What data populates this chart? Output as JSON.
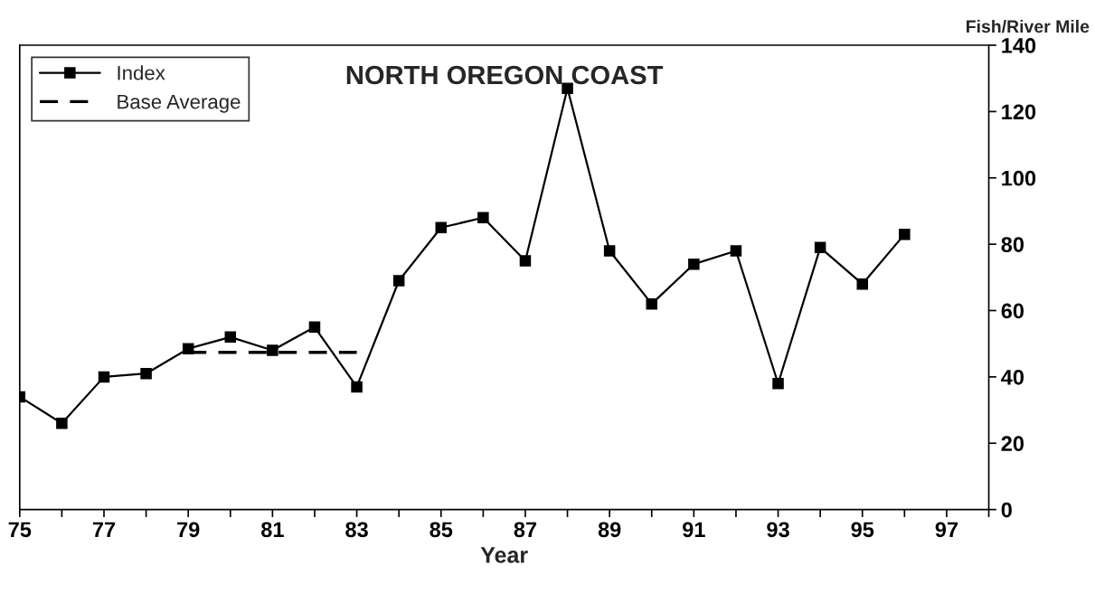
{
  "chart_data": {
    "type": "line",
    "title": "NORTH OREGON COAST",
    "xlabel": "Year",
    "ylabel": "Fish/River Mile",
    "xlim": [
      75,
      98
    ],
    "ylim": [
      0,
      140
    ],
    "xticks": [
      75,
      {
        "value": 76,
        "label": null
      },
      77,
      {
        "value": 78,
        "label": null
      },
      79,
      {
        "value": 80,
        "label": null
      },
      81,
      {
        "value": 82,
        "label": null
      },
      83,
      {
        "value": 84,
        "label": null
      },
      85,
      {
        "value": 86,
        "label": null
      },
      87,
      {
        "value": 88,
        "label": null
      },
      89,
      {
        "value": 90,
        "label": null
      },
      91,
      {
        "value": 92,
        "label": null
      },
      93,
      {
        "value": 94,
        "label": null
      },
      95,
      {
        "value": 96,
        "label": null
      },
      97,
      {
        "value": 98,
        "label": null
      }
    ],
    "yticks": [
      0,
      20,
      40,
      60,
      80,
      100,
      120,
      140
    ],
    "grid": false,
    "legend": "top left",
    "series": [
      {
        "name": "Index",
        "color": "#000000",
        "marker": "square",
        "line_style": "solid",
        "x": [
          75,
          76,
          77,
          78,
          79,
          80,
          81,
          82,
          83,
          84,
          85,
          86,
          87,
          88,
          89,
          90,
          91,
          92,
          93,
          94,
          95,
          96
        ],
        "values": [
          34,
          26,
          40,
          41,
          48.5,
          52,
          48,
          55,
          37,
          69,
          85,
          88,
          75,
          127,
          78,
          62,
          74,
          78,
          38,
          79,
          68,
          83
        ]
      },
      {
        "name": "Base Average",
        "color": "#000000",
        "marker": "none",
        "line_style": "dashed",
        "x": [
          79,
          83
        ],
        "values": [
          47.4,
          47.4
        ]
      }
    ]
  }
}
